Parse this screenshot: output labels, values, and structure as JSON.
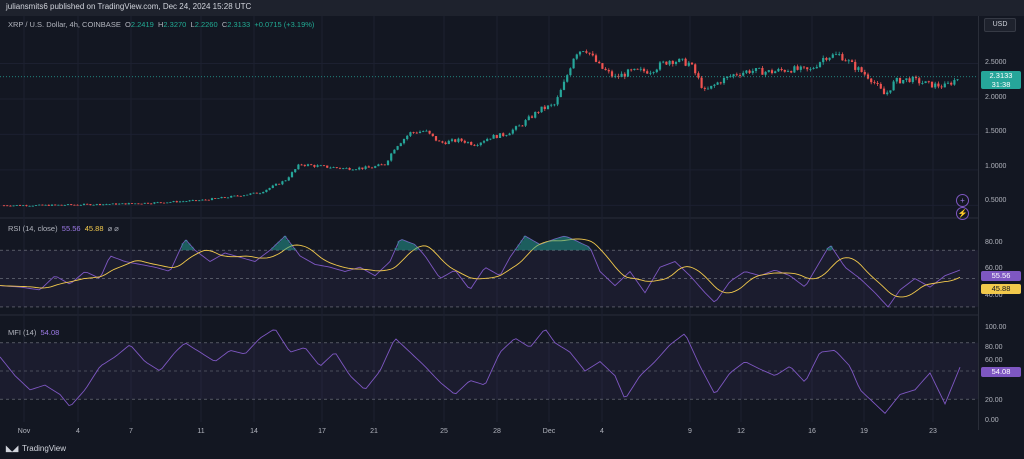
{
  "publish_line": "juliansmits6 published on TradingView.com, Dec 24, 2024 15:28 UTC",
  "currency_button": "USD",
  "main_legend": {
    "symbol": "XRP / U.S. Dollar, 4h, COINBASE",
    "o_label": "O",
    "o": "2.2419",
    "h_label": "H",
    "h": "2.3270",
    "l_label": "L",
    "l": "2.2260",
    "c_label": "C",
    "c": "2.3133",
    "change": "+0.0715 (+3.19%)"
  },
  "price_axis": [
    "2.5000",
    "2.0000",
    "1.5000",
    "1.0000",
    "0.5000"
  ],
  "price_tag": {
    "price": "2.3133",
    "countdown": "31:38"
  },
  "rsi": {
    "label": "RSI (14, close)",
    "value": "55.56",
    "ma": "45.88",
    "icons": "⌀ ⌀",
    "axis": [
      "80.00",
      "60.00",
      "40.00"
    ],
    "tag_value": "55.56",
    "tag_ma": "45.88"
  },
  "mfi": {
    "label": "MFI (14)",
    "value": "54.08",
    "axis": [
      "100.00",
      "80.00",
      "60.00",
      "20.00",
      "0.00"
    ],
    "tag_value": "54.08"
  },
  "x_axis": [
    "Nov",
    "4",
    "7",
    "11",
    "14",
    "17",
    "21",
    "25",
    "28",
    "Dec",
    "4",
    "9",
    "12",
    "16",
    "19",
    "23"
  ],
  "footer_brand": "TradingView",
  "colors": {
    "up": "#26a69a",
    "down": "#ef5350",
    "rsi": "#7e57c2",
    "rsi_ma": "#f2c94c",
    "mfi": "#7e57c2",
    "bg": "#131722"
  },
  "chart_data": [
    {
      "type": "candlestick",
      "title": "XRP / U.S. Dollar, 4h, COINBASE",
      "ylim": [
        0.35,
        3.0
      ],
      "close_path": [
        [
          0,
          0.5
        ],
        [
          40,
          0.5
        ],
        [
          80,
          0.51
        ],
        [
          120,
          0.52
        ],
        [
          160,
          0.54
        ],
        [
          200,
          0.57
        ],
        [
          230,
          0.62
        ],
        [
          260,
          0.68
        ],
        [
          285,
          0.85
        ],
        [
          300,
          1.08
        ],
        [
          320,
          1.05
        ],
        [
          345,
          1.02
        ],
        [
          370,
          1.03
        ],
        [
          385,
          1.08
        ],
        [
          395,
          1.32
        ],
        [
          410,
          1.52
        ],
        [
          425,
          1.55
        ],
        [
          440,
          1.38
        ],
        [
          460,
          1.42
        ],
        [
          475,
          1.36
        ],
        [
          490,
          1.46
        ],
        [
          505,
          1.5
        ],
        [
          520,
          1.62
        ],
        [
          540,
          1.85
        ],
        [
          555,
          1.92
        ],
        [
          565,
          2.25
        ],
        [
          575,
          2.65
        ],
        [
          585,
          2.72
        ],
        [
          600,
          2.45
        ],
        [
          615,
          2.3
        ],
        [
          630,
          2.38
        ],
        [
          650,
          2.4
        ],
        [
          670,
          2.55
        ],
        [
          690,
          2.5
        ],
        [
          705,
          2.1
        ],
        [
          720,
          2.25
        ],
        [
          735,
          2.35
        ],
        [
          750,
          2.4
        ],
        [
          770,
          2.38
        ],
        [
          790,
          2.42
        ],
        [
          810,
          2.4
        ],
        [
          825,
          2.6
        ],
        [
          840,
          2.62
        ],
        [
          855,
          2.45
        ],
        [
          870,
          2.3
        ],
        [
          885,
          2.05
        ],
        [
          895,
          2.25
        ],
        [
          910,
          2.28
        ],
        [
          930,
          2.2
        ],
        [
          945,
          2.18
        ],
        [
          960,
          2.31
        ]
      ]
    },
    {
      "type": "line",
      "title": "RSI (14, close)",
      "ylim": [
        25,
        92
      ],
      "series": [
        {
          "name": "RSI",
          "values": [
            [
              0,
              45
            ],
            [
              20,
              44
            ],
            [
              40,
              42
            ],
            [
              55,
              52
            ],
            [
              70,
              46
            ],
            [
              85,
              55
            ],
            [
              100,
              50
            ],
            [
              110,
              66
            ],
            [
              125,
              62
            ],
            [
              140,
              60
            ],
            [
              155,
              58
            ],
            [
              170,
              55
            ],
            [
              185,
              78
            ],
            [
              195,
              70
            ],
            [
              210,
              62
            ],
            [
              225,
              68
            ],
            [
              240,
              65
            ],
            [
              255,
              62
            ],
            [
              270,
              70
            ],
            [
              285,
              80
            ],
            [
              300,
              66
            ],
            [
              315,
              60
            ],
            [
              330,
              58
            ],
            [
              345,
              55
            ],
            [
              360,
              58
            ],
            [
              375,
              52
            ],
            [
              390,
              62
            ],
            [
              400,
              78
            ],
            [
              415,
              74
            ],
            [
              425,
              66
            ],
            [
              440,
              50
            ],
            [
              455,
              56
            ],
            [
              470,
              42
            ],
            [
              485,
              58
            ],
            [
              500,
              52
            ],
            [
              510,
              65
            ],
            [
              525,
              80
            ],
            [
              540,
              74
            ],
            [
              555,
              78
            ],
            [
              565,
              80
            ],
            [
              575,
              77
            ],
            [
              590,
              72
            ],
            [
              600,
              55
            ],
            [
              615,
              45
            ],
            [
              630,
              55
            ],
            [
              645,
              40
            ],
            [
              660,
              58
            ],
            [
              675,
              62
            ],
            [
              690,
              52
            ],
            [
              705,
              40
            ],
            [
              715,
              33
            ],
            [
              730,
              48
            ],
            [
              745,
              55
            ],
            [
              760,
              52
            ],
            [
              775,
              56
            ],
            [
              790,
              52
            ],
            [
              805,
              44
            ],
            [
              820,
              62
            ],
            [
              830,
              74
            ],
            [
              845,
              58
            ],
            [
              860,
              50
            ],
            [
              875,
              40
            ],
            [
              888,
              30
            ],
            [
              900,
              42
            ],
            [
              915,
              50
            ],
            [
              930,
              44
            ],
            [
              945,
              52
            ],
            [
              960,
              56
            ]
          ]
        }
      ]
    },
    {
      "type": "line",
      "title": "MFI (14)",
      "ylim": [
        0,
        100
      ],
      "series": [
        {
          "name": "MFI",
          "values": [
            [
              0,
              65
            ],
            [
              15,
              45
            ],
            [
              30,
              30
            ],
            [
              45,
              35
            ],
            [
              60,
              25
            ],
            [
              70,
              12
            ],
            [
              85,
              30
            ],
            [
              100,
              55
            ],
            [
              115,
              65
            ],
            [
              130,
              78
            ],
            [
              145,
              60
            ],
            [
              160,
              50
            ],
            [
              175,
              70
            ],
            [
              185,
              80
            ],
            [
              200,
              70
            ],
            [
              215,
              60
            ],
            [
              230,
              72
            ],
            [
              245,
              68
            ],
            [
              260,
              85
            ],
            [
              275,
              95
            ],
            [
              290,
              70
            ],
            [
              305,
              75
            ],
            [
              320,
              55
            ],
            [
              335,
              70
            ],
            [
              350,
              45
            ],
            [
              365,
              30
            ],
            [
              380,
              50
            ],
            [
              395,
              85
            ],
            [
              410,
              70
            ],
            [
              425,
              55
            ],
            [
              440,
              38
            ],
            [
              455,
              25
            ],
            [
              470,
              40
            ],
            [
              485,
              35
            ],
            [
              500,
              70
            ],
            [
              515,
              85
            ],
            [
              530,
              75
            ],
            [
              545,
              95
            ],
            [
              555,
              80
            ],
            [
              570,
              70
            ],
            [
              585,
              50
            ],
            [
              600,
              60
            ],
            [
              615,
              45
            ],
            [
              625,
              20
            ],
            [
              640,
              45
            ],
            [
              655,
              60
            ],
            [
              670,
              78
            ],
            [
              685,
              90
            ],
            [
              700,
              55
            ],
            [
              715,
              25
            ],
            [
              730,
              48
            ],
            [
              745,
              60
            ],
            [
              760,
              52
            ],
            [
              775,
              45
            ],
            [
              790,
              55
            ],
            [
              805,
              38
            ],
            [
              820,
              70
            ],
            [
              835,
              72
            ],
            [
              850,
              55
            ],
            [
              860,
              30
            ],
            [
              875,
              15
            ],
            [
              885,
              5
            ],
            [
              900,
              25
            ],
            [
              915,
              30
            ],
            [
              930,
              48
            ],
            [
              945,
              15
            ],
            [
              960,
              54
            ]
          ]
        }
      ]
    }
  ]
}
